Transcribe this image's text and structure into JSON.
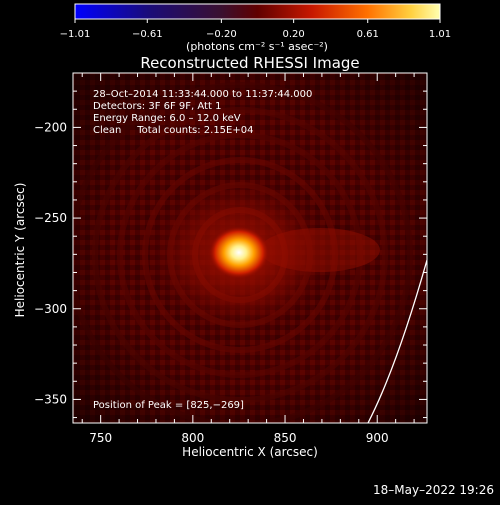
{
  "chart_data": {
    "type": "heatmap",
    "title": "Reconstructed RHESSI Image",
    "xlabel": "Heliocentric X (arcsec)",
    "ylabel": "Heliocentric Y (arcsec)",
    "xlim": [
      735,
      927
    ],
    "ylim": [
      -363,
      -170
    ],
    "x_ticks": [
      750,
      800,
      850,
      900
    ],
    "y_ticks": [
      -200,
      -250,
      -300,
      -350
    ],
    "colorbar": {
      "min": -1.01,
      "max": 1.01,
      "ticks": [
        -1.01,
        -0.61,
        -0.2,
        0.2,
        0.61,
        1.01
      ],
      "tick_labels": [
        "−1.01",
        "−0.61",
        "−0.20",
        "0.20",
        "0.61",
        "1.01"
      ],
      "units_label": "(photons cm⁻² s⁻¹ asec⁻²)"
    },
    "peak": {
      "x": 825,
      "y": -269
    },
    "colors": {
      "background": "#000000",
      "foreground": "#ffffff",
      "map_base": "#4a0000",
      "peak_core": "#ffffff"
    }
  },
  "annotation": {
    "line1": "28–Oct–2014 11:33:44.000 to 11:37:44.000",
    "line2": "Detectors: 3F 6F 9F, Att 1",
    "line3": "Energy Range: 6.0 – 12.0 keV",
    "line4": "Clean     Total counts: 2.15E+04",
    "peak_label": "Position of Peak = [825,−269]"
  },
  "footer": {
    "timestamp": "18–May–2022 19:26"
  }
}
